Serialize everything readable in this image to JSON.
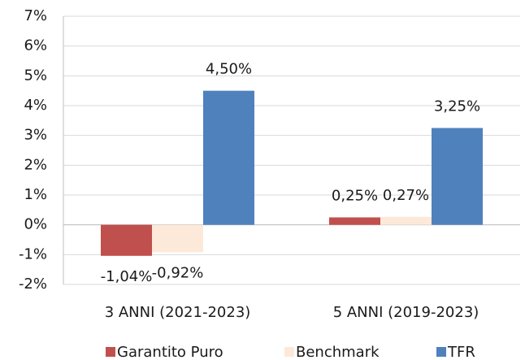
{
  "chart_data": {
    "type": "bar",
    "categories": [
      "3 ANNI (2021-2023)",
      "5 ANNI (2019-2023)"
    ],
    "series": [
      {
        "name": "Garantito Puro",
        "color": "#c0504d",
        "values": [
          -1.04,
          0.25
        ],
        "value_labels": [
          "-1,04%",
          "0,25%"
        ]
      },
      {
        "name": "Benchmark",
        "color": "#fde9d9",
        "values": [
          -0.92,
          0.27
        ],
        "value_labels": [
          "-0,92%",
          "0,27%"
        ]
      },
      {
        "name": "TFR",
        "color": "#4f81bd",
        "values": [
          4.5,
          3.25
        ],
        "value_labels": [
          "4,50%",
          "3,25%"
        ]
      }
    ],
    "ylim": [
      -2,
      7
    ],
    "yticks": [
      {
        "value": -2,
        "label": "-2%"
      },
      {
        "value": -1,
        "label": "-1%"
      },
      {
        "value": 0,
        "label": "0%"
      },
      {
        "value": 1,
        "label": "1%"
      },
      {
        "value": 2,
        "label": "2%"
      },
      {
        "value": 3,
        "label": "3%"
      },
      {
        "value": 4,
        "label": "4%"
      },
      {
        "value": 5,
        "label": "5%"
      },
      {
        "value": 6,
        "label": "6%"
      },
      {
        "value": 7,
        "label": "7%"
      }
    ],
    "grid": true,
    "legend": "bottom"
  }
}
